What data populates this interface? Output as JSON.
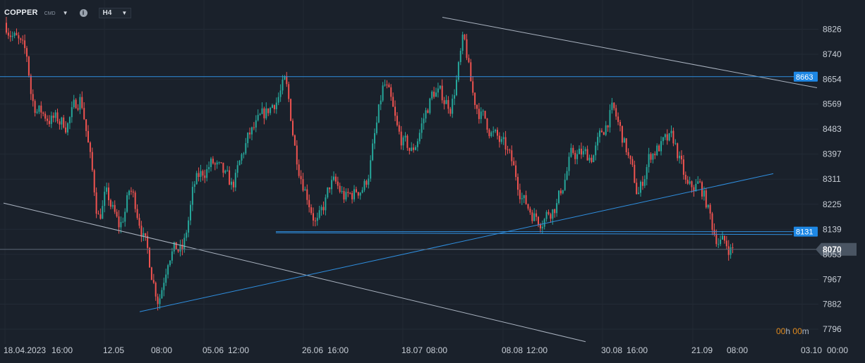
{
  "toolbar": {
    "symbol": "COPPER",
    "symbol_sub": "CMD",
    "info_glyph": "i",
    "timeframe": "H4",
    "dropdown_glyph": "▼"
  },
  "timer": {
    "hours": "00",
    "h": "h",
    "minutes": "00",
    "m": "m"
  },
  "colors": {
    "background": "#1a212b",
    "up": "#26a69a",
    "down": "#ef5350",
    "trend_white": "#aab3c0",
    "trend_blue": "#2f8fe0",
    "label_blue": "#1e88e5",
    "current_label": "#4a5563",
    "timer": "#e08a1e"
  },
  "chart_data": {
    "type": "candlestick",
    "ylim": [
      7750,
      8890
    ],
    "y_ticks": [
      8826,
      8740,
      8654,
      8569,
      8483,
      8397,
      8311,
      8225,
      8139,
      8053,
      7967,
      7882,
      7796
    ],
    "y_tick_labels": [
      "8826",
      "8740",
      "8654",
      "8569",
      "8483",
      "8397",
      "8311",
      "8225",
      "8139",
      "8053",
      "7967",
      "7882",
      "7796"
    ],
    "x_labels": [
      "18.04.2023",
      "16:00",
      "12.05",
      "08:00",
      "05.06",
      "12:00",
      "26.06",
      "16:00",
      "18.07",
      "08:00",
      "08.08",
      "12:00",
      "30.08",
      "16:00",
      "21.09",
      "08:00",
      "03.10",
      "00:00"
    ],
    "price_levels": [
      {
        "value": 8663,
        "label": "8663"
      },
      {
        "value": 8131,
        "label": "8131"
      }
    ],
    "current_price": {
      "value": 8070,
      "label": "8070"
    },
    "trendlines": [
      {
        "color": "white",
        "from": [
          5,
          8229
        ],
        "to": [
          830,
          7753
        ]
      },
      {
        "color": "white",
        "from": [
          627,
          8867
        ],
        "to": [
          1158,
          8625
        ]
      },
      {
        "color": "blue",
        "from": [
          198,
          7856
        ],
        "to": [
          1096,
          8330
        ]
      },
      {
        "color": "blue",
        "from": [
          391,
          8127
        ],
        "to": [
          1123,
          8121
        ]
      }
    ],
    "path_knots": [
      [
        5,
        8860
      ],
      [
        40,
        8720
      ],
      [
        45,
        8560
      ],
      [
        70,
        8520
      ],
      [
        95,
        8500
      ],
      [
        115,
        8610
      ],
      [
        140,
        8150
      ],
      [
        150,
        8270
      ],
      [
        170,
        8130
      ],
      [
        185,
        8290
      ],
      [
        200,
        8150
      ],
      [
        225,
        7880
      ],
      [
        240,
        8080
      ],
      [
        260,
        8060
      ],
      [
        275,
        8300
      ],
      [
        300,
        8370
      ],
      [
        330,
        8280
      ],
      [
        350,
        8450
      ],
      [
        375,
        8530
      ],
      [
        395,
        8600
      ],
      [
        405,
        8650
      ],
      [
        420,
        8380
      ],
      [
        450,
        8140
      ],
      [
        470,
        8310
      ],
      [
        490,
        8240
      ],
      [
        520,
        8300
      ],
      [
        545,
        8660
      ],
      [
        565,
        8450
      ],
      [
        585,
        8400
      ],
      [
        600,
        8520
      ],
      [
        615,
        8620
      ],
      [
        640,
        8560
      ],
      [
        658,
        8810
      ],
      [
        670,
        8580
      ],
      [
        700,
        8460
      ],
      [
        720,
        8400
      ],
      [
        745,
        8220
      ],
      [
        765,
        8170
      ],
      [
        790,
        8230
      ],
      [
        810,
        8400
      ],
      [
        840,
        8390
      ],
      [
        868,
        8560
      ],
      [
        890,
        8390
      ],
      [
        905,
        8240
      ],
      [
        920,
        8400
      ],
      [
        940,
        8430
      ],
      [
        955,
        8450
      ],
      [
        975,
        8260
      ],
      [
        990,
        8300
      ],
      [
        1000,
        8240
      ],
      [
        1012,
        8120
      ],
      [
        1025,
        8090
      ],
      [
        1038,
        8070
      ]
    ],
    "x_start": 8,
    "x_end": 1038,
    "candle_spacing": 2.9
  }
}
